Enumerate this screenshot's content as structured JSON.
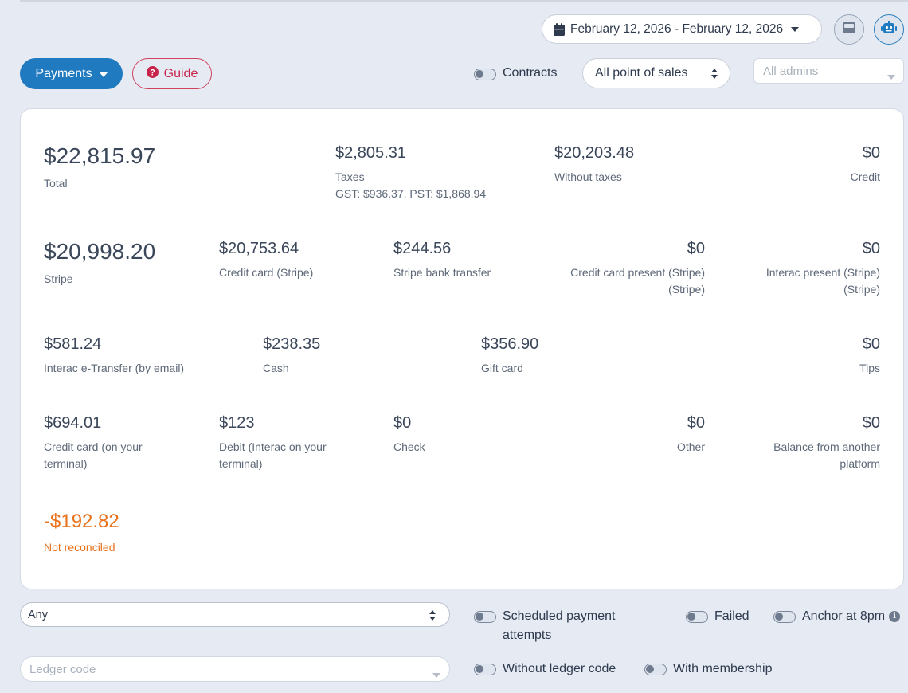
{
  "header": {
    "date_range": "February 12, 2026 - February 12, 2026",
    "report_type_button": "Payments",
    "guide_button": "Guide",
    "contracts_toggle": "Contracts",
    "pos_select": "All point of sales",
    "admins_placeholder": "All admins",
    "icons": [
      "calendar-icon",
      "caret-down-icon",
      "cash-register-icon",
      "robot-icon",
      "question-circle-icon"
    ]
  },
  "summary": {
    "total": {
      "amount": "$22,815.97",
      "label": "Total"
    },
    "taxes": {
      "amount": "$2,805.31",
      "label": "Taxes",
      "detail": "GST: $936.37, PST: $1,868.94"
    },
    "without_taxes": {
      "amount": "$20,203.48",
      "label": "Without taxes"
    },
    "credit": {
      "amount": "$0",
      "label": "Credit"
    },
    "stripe": {
      "amount": "$20,998.20",
      "label": "Stripe"
    },
    "credit_card_stripe": {
      "amount": "$20,753.64",
      "label": "Credit card (Stripe)"
    },
    "stripe_bank_transfer": {
      "amount": "$244.56",
      "label": "Stripe bank transfer"
    },
    "cc_present": {
      "amount": "$0",
      "label_line1": "Credit card present (Stripe)",
      "label_line2": "(Stripe)"
    },
    "interac_present": {
      "amount": "$0",
      "label_line1": "Interac present (Stripe)",
      "label_line2": "(Stripe)"
    },
    "interac_etransfer": {
      "amount": "$581.24",
      "label": "Interac e-Transfer (by email)"
    },
    "cash": {
      "amount": "$238.35",
      "label": "Cash"
    },
    "gift_card": {
      "amount": "$356.90",
      "label": "Gift card"
    },
    "tips": {
      "amount": "$0",
      "label": "Tips"
    },
    "cc_terminal": {
      "amount": "$694.01",
      "label_line1": "Credit card (on your",
      "label_line2": "terminal)"
    },
    "debit_terminal": {
      "amount": "$123",
      "label_line1": "Debit (Interac on your",
      "label_line2": "terminal)"
    },
    "check": {
      "amount": "$0",
      "label": "Check"
    },
    "other": {
      "amount": "$0",
      "label": "Other"
    },
    "balance_other": {
      "amount": "$0",
      "label_line1": "Balance from another",
      "label_line2": "platform"
    },
    "not_reconciled": {
      "amount": "-$192.82",
      "label": "Not reconciled",
      "color": "#e8711c"
    }
  },
  "filters": {
    "status_select": "Any",
    "scheduled_line1": "Scheduled payment",
    "scheduled_line2": "attempts",
    "failed": "Failed",
    "anchor": "Anchor at 8pm",
    "ledger_placeholder": "Ledger code",
    "without_ledger": "Without ledger code",
    "with_membership": "With membership"
  },
  "colors": {
    "accent": "#1f7ac0",
    "guide": "#c8234a",
    "warning": "#e8711c",
    "background": "#e5eaf3"
  }
}
